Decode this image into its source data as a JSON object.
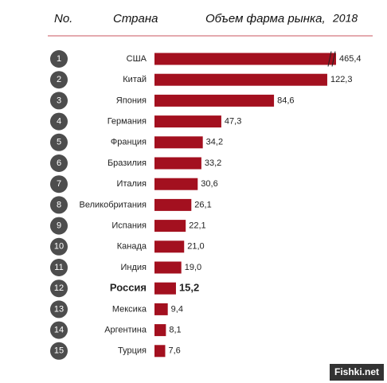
{
  "chart_data": {
    "type": "bar",
    "orientation": "horizontal",
    "rank_header": "No.",
    "category_header": "Страна",
    "value_header": "Объем фарма рынка,",
    "year": "2018",
    "ranks": [
      1,
      2,
      3,
      4,
      5,
      6,
      7,
      8,
      9,
      10,
      11,
      12,
      13,
      14,
      15
    ],
    "categories": [
      "США",
      "Китай",
      "Япония",
      "Германия",
      "Франция",
      "Бразилия",
      "Италия",
      "Великобритания",
      "Испания",
      "Канада",
      "Индия",
      "Россия",
      "Мексика",
      "Аргентина",
      "Турция"
    ],
    "values": [
      465.4,
      122.3,
      84.6,
      47.3,
      34.2,
      33.2,
      30.6,
      26.1,
      22.1,
      21.0,
      19.0,
      15.2,
      9.4,
      8.1,
      7.6
    ],
    "value_labels": [
      "465,4",
      "122,3",
      "84,6",
      "47,3",
      "34,2",
      "33,2",
      "30,6",
      "26,1",
      "22,1",
      "21,0",
      "19,0",
      "15,2",
      "9,4",
      "8,1",
      "7,6"
    ],
    "color": "#a3101f",
    "highlight": 11,
    "axis_break": true,
    "watermark": "Fishki.net"
  }
}
